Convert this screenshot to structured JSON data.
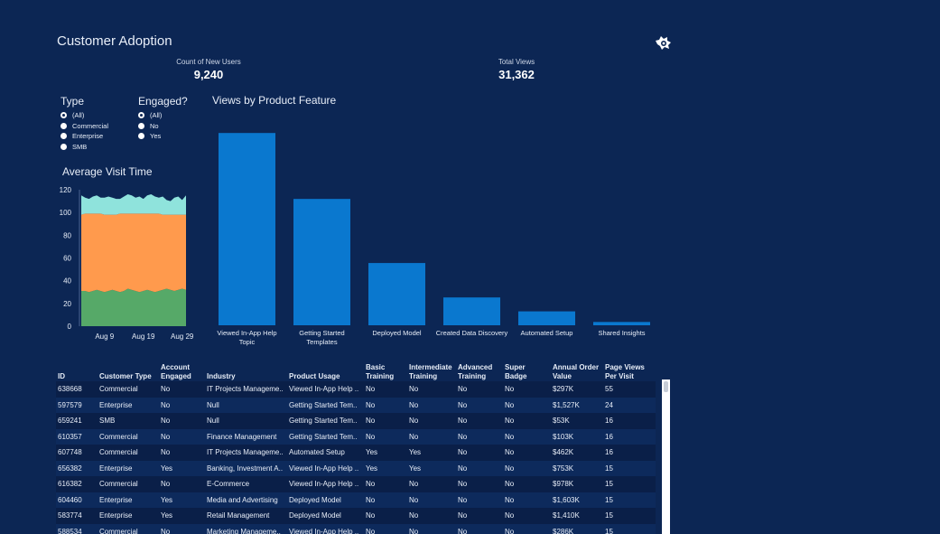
{
  "header": {
    "title": "Customer Adoption"
  },
  "kpis": {
    "new_users_label": "Count of New Users",
    "new_users_value": "9,240",
    "total_views_label": "Total Views",
    "total_views_value": "31,362"
  },
  "filters": {
    "type": {
      "title": "Type",
      "options": [
        "(All)",
        "Commercial",
        "Enterprise",
        "SMB"
      ],
      "selected": "(All)"
    },
    "engaged": {
      "title": "Engaged?",
      "options": [
        "(All)",
        "No",
        "Yes"
      ],
      "selected": "(All)"
    }
  },
  "colors": {
    "background": "#0c2654",
    "bar": "#0a78cf",
    "area_green": "#56a968",
    "area_orange": "#ff9a4d",
    "area_teal": "#8fe3dc"
  },
  "chart_data": [
    {
      "type": "bar",
      "title": "Views by Product Feature",
      "categories": [
        "Viewed In-App Help Topic",
        "Getting Started Templates",
        "Deployed Model",
        "Created Data Discovery",
        "Automated Setup",
        "Shared Insights"
      ],
      "category_lines": [
        [
          "Viewed In-App Help",
          "Topic"
        ],
        [
          "Getting Started",
          "Templates"
        ],
        [
          "Deployed Model"
        ],
        [
          "Created Data Discovery"
        ],
        [
          "Automated Setup"
        ],
        [
          "Shared Insights"
        ]
      ],
      "values": [
        10500,
        6900,
        3400,
        1520,
        760,
        180
      ],
      "ylim": [
        0,
        11200
      ]
    },
    {
      "type": "area",
      "title": "Average Visit Time",
      "xlabel": "",
      "ylabel": "",
      "ylim": [
        0,
        120
      ],
      "yticks": [
        0,
        20,
        40,
        60,
        80,
        100,
        120
      ],
      "xtick_labels": [
        "Aug 9",
        "Aug 19",
        "Aug 29"
      ],
      "xtick_index": [
        6,
        16,
        26
      ],
      "series": [
        {
          "values": [
            31,
            31,
            30,
            31,
            32,
            31,
            30,
            31,
            32,
            31,
            30,
            31,
            33,
            32,
            31,
            30,
            31,
            32,
            31,
            30,
            31,
            32,
            33,
            32,
            31,
            32,
            33,
            32
          ]
        },
        {
          "values": [
            67,
            68,
            69,
            68,
            67,
            68,
            68,
            67,
            66,
            67,
            69,
            68,
            66,
            67,
            68,
            69,
            68,
            67,
            68,
            69,
            68,
            66,
            65,
            66,
            67,
            66,
            65,
            66
          ]
        },
        {
          "values": [
            17,
            14,
            13,
            15,
            16,
            14,
            15,
            16,
            15,
            14,
            13,
            15,
            17,
            16,
            14,
            15,
            13,
            16,
            17,
            15,
            14,
            16,
            13,
            12,
            15,
            16,
            13,
            17
          ]
        }
      ]
    }
  ],
  "table": {
    "headers": [
      "ID",
      "Customer Type",
      "Account Engaged",
      "Industry",
      "Product Usage",
      "Basic Training",
      "Intermediate Training",
      "Advanced Training",
      "Super Badge",
      "Annual Order Value",
      "Page Views Per Visit"
    ],
    "rows": [
      [
        "638668",
        "Commercial",
        "No",
        "IT Projects Manageme..",
        "Viewed In-App Help ..",
        "No",
        "No",
        "No",
        "No",
        "$297K",
        "55"
      ],
      [
        "597579",
        "Enterprise",
        "No",
        "Null",
        "Getting Started Tem..",
        "No",
        "No",
        "No",
        "No",
        "$1,527K",
        "24"
      ],
      [
        "659241",
        "SMB",
        "No",
        "Null",
        "Getting Started Tem..",
        "No",
        "No",
        "No",
        "No",
        "$53K",
        "16"
      ],
      [
        "610357",
        "Commercial",
        "No",
        "Finance Management",
        "Getting Started Tem..",
        "No",
        "No",
        "No",
        "No",
        "$103K",
        "16"
      ],
      [
        "607748",
        "Commercial",
        "No",
        "IT Projects Manageme..",
        "Automated Setup",
        "Yes",
        "Yes",
        "No",
        "No",
        "$462K",
        "16"
      ],
      [
        "656382",
        "Enterprise",
        "Yes",
        "Banking, Investment A..",
        "Viewed In-App Help ..",
        "Yes",
        "Yes",
        "No",
        "No",
        "$753K",
        "15"
      ],
      [
        "616382",
        "Commercial",
        "No",
        "E-Commerce",
        "Viewed In-App Help ..",
        "No",
        "No",
        "No",
        "No",
        "$978K",
        "15"
      ],
      [
        "604460",
        "Enterprise",
        "Yes",
        "Media and Advertising",
        "Deployed Model",
        "No",
        "No",
        "No",
        "No",
        "$1,603K",
        "15"
      ],
      [
        "583774",
        "Enterprise",
        "Yes",
        "Retail Management",
        "Deployed Model",
        "No",
        "No",
        "No",
        "No",
        "$1,410K",
        "15"
      ],
      [
        "588534",
        "Commercial",
        "No",
        "Marketing Manageme..",
        "Viewed In-App Help ..",
        "No",
        "No",
        "No",
        "No",
        "$286K",
        "15"
      ]
    ]
  }
}
